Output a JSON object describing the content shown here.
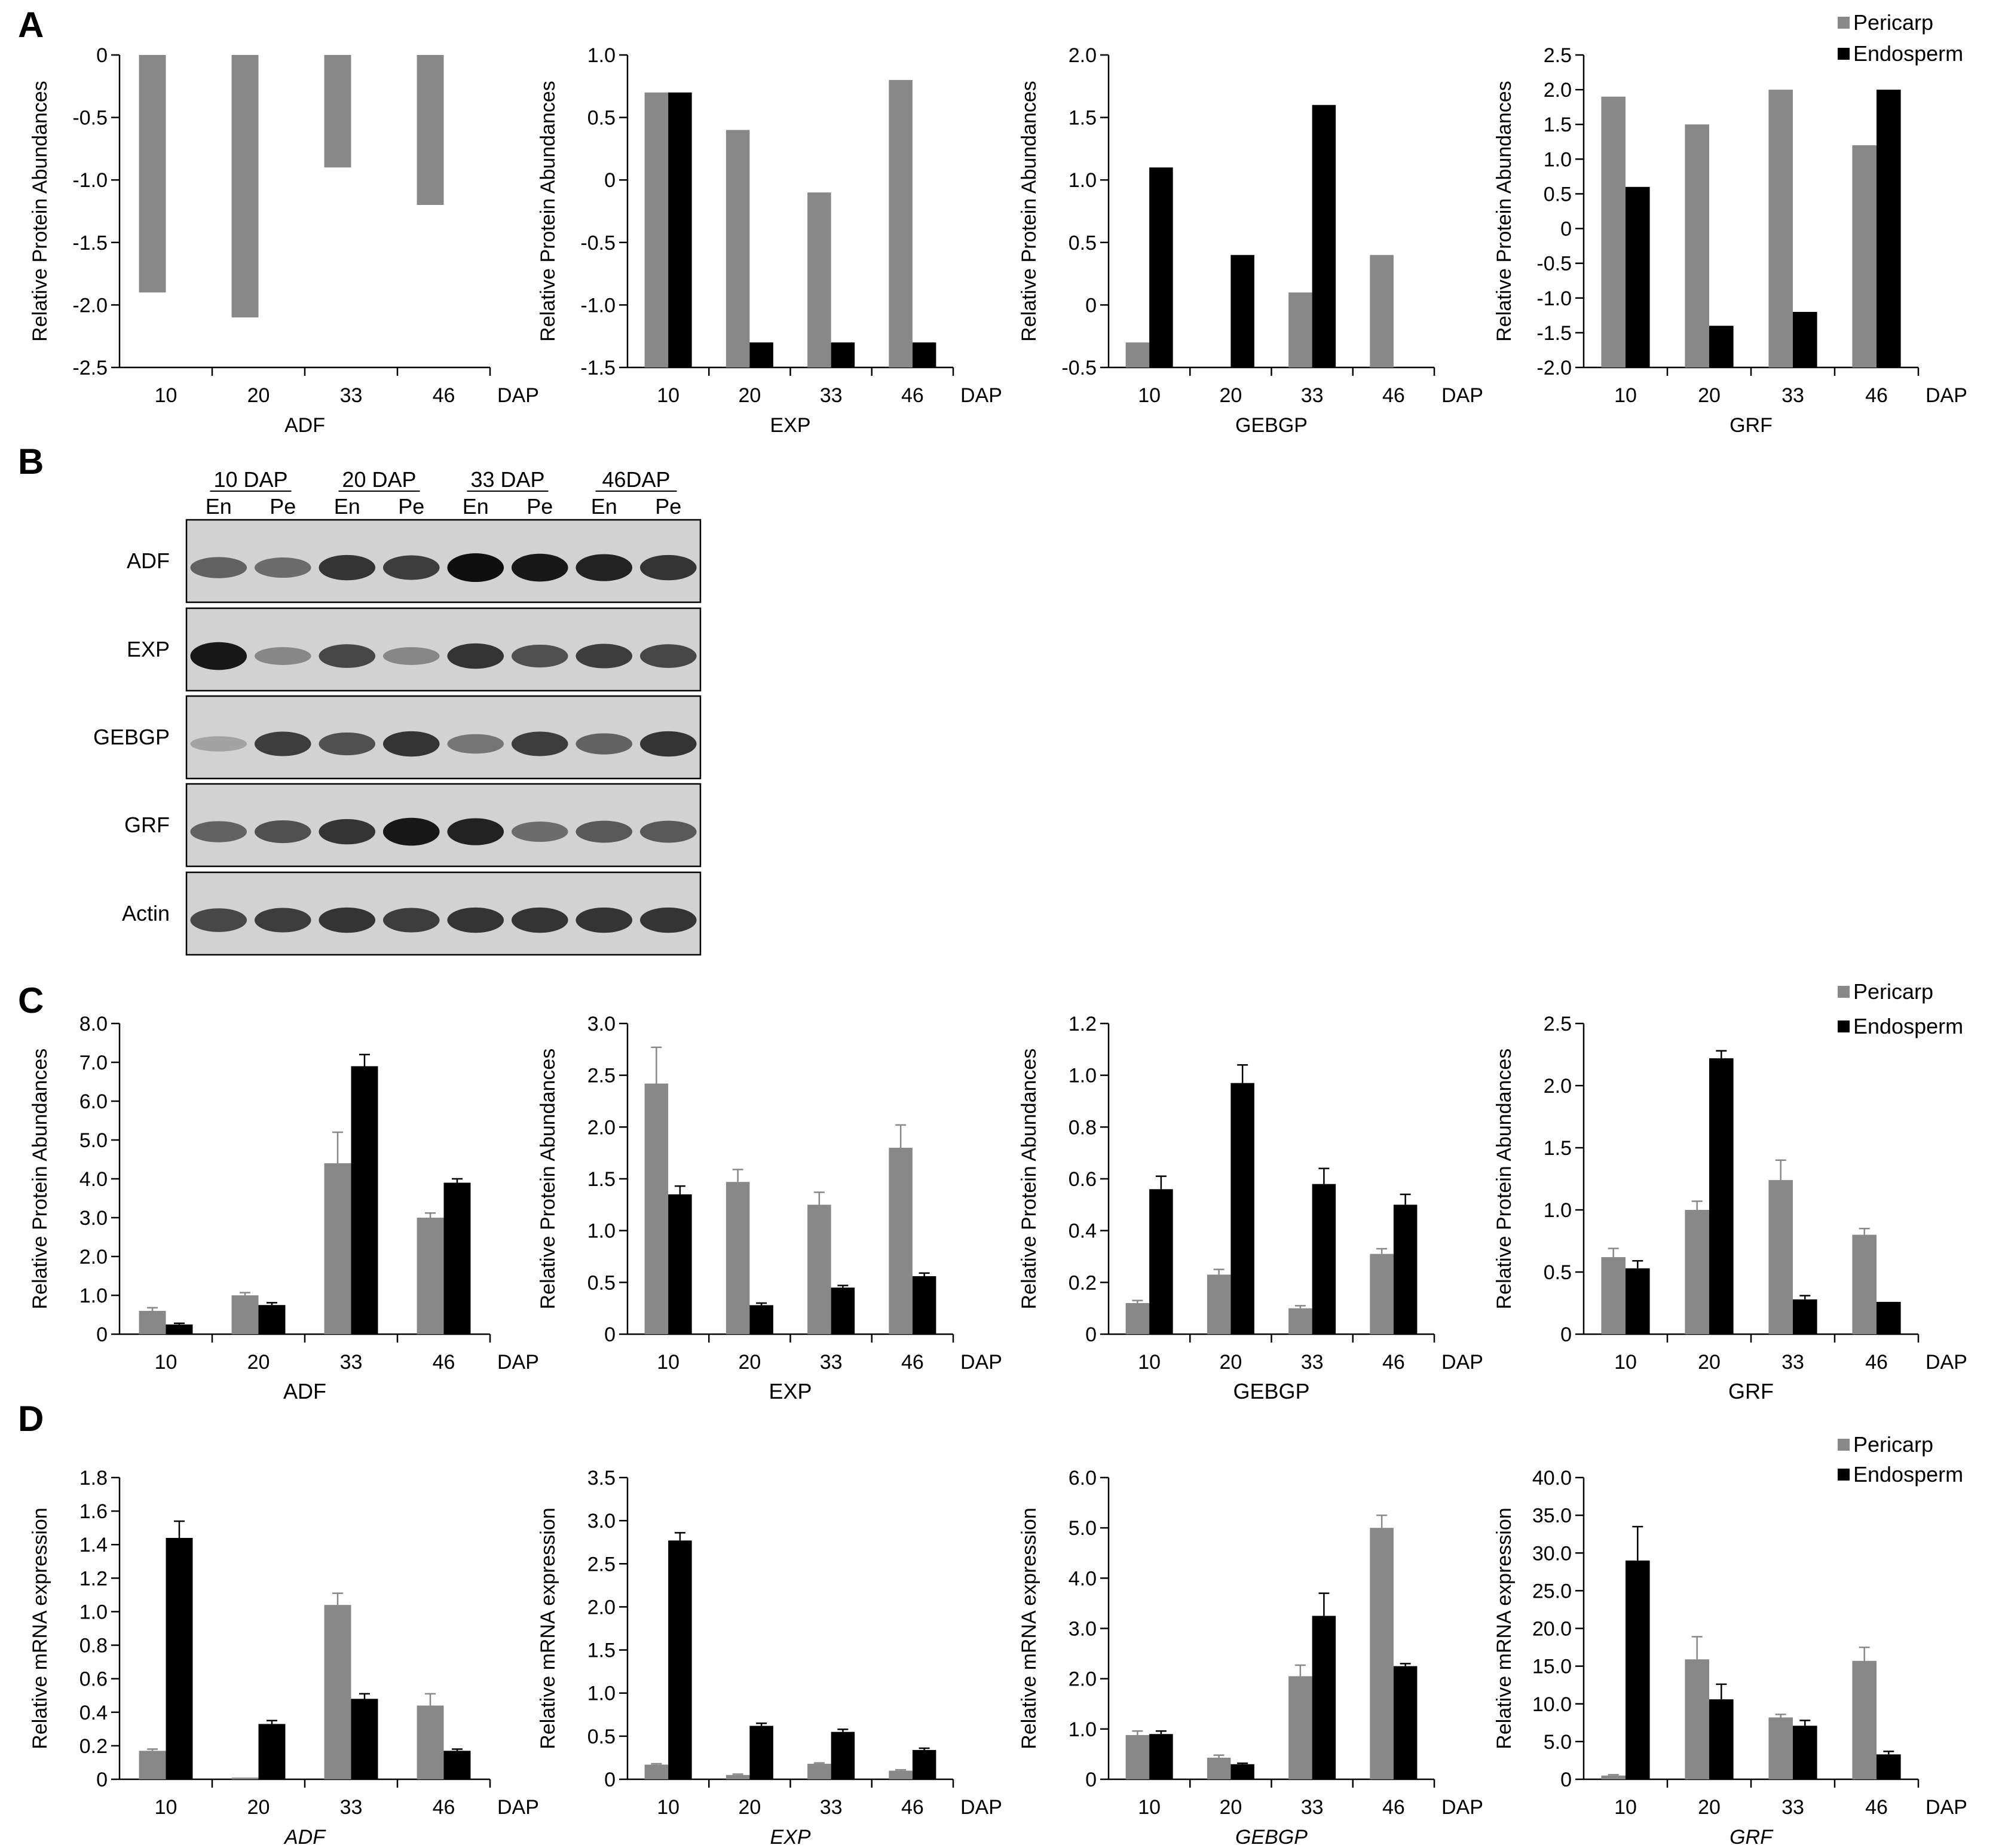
{
  "panels": [
    {
      "id": "A",
      "letter": "A"
    },
    {
      "id": "B",
      "letter": "B"
    },
    {
      "id": "C",
      "letter": "C"
    },
    {
      "id": "D",
      "letter": "D"
    }
  ],
  "legend": {
    "pericarp": "Pericarp",
    "endosperm": "Endosperm",
    "pericarp_color": "#888888",
    "endosperm_color": "#000000"
  },
  "blot": {
    "groups": [
      "10 DAP",
      "20 DAP",
      "33 DAP",
      "46DAP"
    ],
    "lanes": [
      "En",
      "Pe",
      "En",
      "Pe",
      "En",
      "Pe",
      "En",
      "Pe"
    ],
    "rows": [
      {
        "label": "ADF",
        "intensity": [
          0.55,
          0.5,
          0.8,
          0.75,
          1.0,
          0.95,
          0.9,
          0.8
        ]
      },
      {
        "label": "EXP",
        "intensity": [
          0.95,
          0.35,
          0.7,
          0.35,
          0.8,
          0.65,
          0.75,
          0.7
        ]
      },
      {
        "label": "GEBGP",
        "intensity": [
          0.2,
          0.75,
          0.65,
          0.8,
          0.45,
          0.75,
          0.55,
          0.8
        ]
      },
      {
        "label": "GRF",
        "intensity": [
          0.55,
          0.65,
          0.8,
          0.95,
          0.9,
          0.5,
          0.6,
          0.6
        ]
      },
      {
        "label": "Actin",
        "intensity": [
          0.7,
          0.75,
          0.8,
          0.75,
          0.8,
          0.8,
          0.8,
          0.8
        ]
      }
    ]
  },
  "chart_data": [
    {
      "panel": "A",
      "type": "bar",
      "categories": [
        "10",
        "20",
        "33",
        "46"
      ],
      "xunit": "DAP",
      "xlabel": "ADF",
      "xlabel_italic": false,
      "ylabel": "Relative Protein Abundances",
      "ylim": [
        -2.5,
        0
      ],
      "yticks": [
        "0",
        "-0.5",
        "-1.0",
        "-1.5",
        "-2.0",
        "-2.5"
      ],
      "baseline": 0,
      "series": [
        {
          "name": "Pericarp",
          "values": [
            -1.9,
            -2.1,
            -0.9,
            -1.2
          ]
        },
        {
          "name": "Endosperm",
          "values": [
            null,
            null,
            null,
            null
          ]
        }
      ]
    },
    {
      "panel": "A",
      "type": "bar",
      "categories": [
        "10",
        "20",
        "33",
        "46"
      ],
      "xunit": "DAP",
      "xlabel": "EXP",
      "xlabel_italic": false,
      "ylabel": "Relative Protein Abundances",
      "ylim": [
        -1.5,
        1.0
      ],
      "yticks": [
        "1.0",
        "0.5",
        "0",
        "-0.5",
        "-1.0",
        "-1.5"
      ],
      "baseline": -1.5,
      "series": [
        {
          "name": "Pericarp",
          "values": [
            0.7,
            0.4,
            -0.1,
            0.8
          ]
        },
        {
          "name": "Endosperm",
          "values": [
            0.7,
            -1.3,
            -1.3,
            -1.3
          ]
        }
      ]
    },
    {
      "panel": "A",
      "type": "bar",
      "categories": [
        "10",
        "20",
        "33",
        "46"
      ],
      "xunit": "DAP",
      "xlabel": "GEBGP",
      "xlabel_italic": false,
      "ylabel": "Relative Protein Abundances",
      "ylim": [
        -0.5,
        2.0
      ],
      "yticks": [
        "2.0",
        "1.5",
        "1.0",
        "0.5",
        "0",
        "-0.5"
      ],
      "baseline": -0.5,
      "series": [
        {
          "name": "Pericarp",
          "values": [
            -0.3,
            null,
            0.1,
            0.4
          ]
        },
        {
          "name": "Endosperm",
          "values": [
            1.1,
            0.4,
            1.6,
            null
          ]
        }
      ]
    },
    {
      "panel": "A",
      "type": "bar",
      "categories": [
        "10",
        "20",
        "33",
        "46"
      ],
      "xunit": "DAP",
      "xlabel": "GRF",
      "xlabel_italic": false,
      "ylabel": "Relative Protein Abundances",
      "ylim": [
        -2.0,
        2.5
      ],
      "yticks": [
        "2.5",
        "2.0",
        "1.5",
        "1.0",
        "0.5",
        "0",
        "-0.5",
        "-1.0",
        "-1.5",
        "-2.0"
      ],
      "baseline": -2.0,
      "legend": true,
      "series": [
        {
          "name": "Pericarp",
          "values": [
            1.9,
            1.5,
            2.0,
            1.2
          ]
        },
        {
          "name": "Endosperm",
          "values": [
            0.6,
            -1.4,
            -1.2,
            2.0
          ]
        }
      ]
    },
    {
      "panel": "C",
      "type": "bar",
      "categories": [
        "10",
        "20",
        "33",
        "46"
      ],
      "xunit": "DAP",
      "xlabel": "ADF",
      "xlabel_italic": false,
      "ylabel": "Relative Protein Abundances",
      "ylim": [
        0,
        8.0
      ],
      "yticks": [
        "0",
        "1.0",
        "2.0",
        "3.0",
        "4.0",
        "5.0",
        "6.0",
        "7.0",
        "8.0"
      ],
      "baseline": 0,
      "series": [
        {
          "name": "Pericarp",
          "values": [
            0.6,
            1.0,
            4.4,
            3.0
          ],
          "errors": [
            0.08,
            0.07,
            0.8,
            0.12
          ]
        },
        {
          "name": "Endosperm",
          "values": [
            0.25,
            0.75,
            6.9,
            3.9
          ],
          "errors": [
            0.03,
            0.06,
            0.3,
            0.1
          ]
        }
      ]
    },
    {
      "panel": "C",
      "type": "bar",
      "categories": [
        "10",
        "20",
        "33",
        "46"
      ],
      "xunit": "DAP",
      "xlabel": "EXP",
      "xlabel_italic": false,
      "ylabel": "Relative Protein Abundances",
      "ylim": [
        0,
        3.0
      ],
      "yticks": [
        "0",
        "0.5",
        "1.0",
        "1.5",
        "2.0",
        "2.5",
        "3.0"
      ],
      "baseline": 0,
      "series": [
        {
          "name": "Pericarp",
          "values": [
            2.42,
            1.47,
            1.25,
            1.8
          ],
          "errors": [
            0.35,
            0.12,
            0.12,
            0.22
          ]
        },
        {
          "name": "Endosperm",
          "values": [
            1.35,
            0.28,
            0.45,
            0.56
          ],
          "errors": [
            0.08,
            0.02,
            0.02,
            0.03
          ]
        }
      ]
    },
    {
      "panel": "C",
      "type": "bar",
      "categories": [
        "10",
        "20",
        "33",
        "46"
      ],
      "xunit": "DAP",
      "xlabel": "GEBGP",
      "xlabel_italic": false,
      "ylabel": "Relative Protein Abundances",
      "ylim": [
        0,
        1.2
      ],
      "yticks": [
        "0",
        "0.2",
        "0.4",
        "0.6",
        "0.8",
        "1.0",
        "1.2"
      ],
      "baseline": 0,
      "series": [
        {
          "name": "Pericarp",
          "values": [
            0.12,
            0.23,
            0.1,
            0.31
          ],
          "errors": [
            0.01,
            0.02,
            0.01,
            0.02
          ]
        },
        {
          "name": "Endosperm",
          "values": [
            0.56,
            0.97,
            0.58,
            0.5
          ],
          "errors": [
            0.05,
            0.07,
            0.06,
            0.04
          ]
        }
      ]
    },
    {
      "panel": "C",
      "type": "bar",
      "categories": [
        "10",
        "20",
        "33",
        "46"
      ],
      "xunit": "DAP",
      "xlabel": "GRF",
      "xlabel_italic": false,
      "ylabel": "Relative Protein Abundances",
      "ylim": [
        0,
        2.5
      ],
      "yticks": [
        "0",
        "0.5",
        "1.0",
        "1.5",
        "2.0",
        "2.5"
      ],
      "baseline": 0,
      "legend": true,
      "series": [
        {
          "name": "Pericarp",
          "values": [
            0.62,
            1.0,
            1.24,
            0.8
          ],
          "errors": [
            0.07,
            0.07,
            0.16,
            0.05
          ]
        },
        {
          "name": "Endosperm",
          "values": [
            0.53,
            2.22,
            0.28,
            0.26
          ],
          "errors": [
            0.06,
            0.06,
            0.03,
            0.0
          ]
        }
      ]
    },
    {
      "panel": "D",
      "type": "bar",
      "categories": [
        "10",
        "20",
        "33",
        "46"
      ],
      "xunit": "DAP",
      "xlabel": "ADF",
      "xlabel_italic": true,
      "ylabel": "Relative mRNA expression",
      "ylim": [
        0,
        1.8
      ],
      "yticks": [
        "0",
        "0.2",
        "0.4",
        "0.6",
        "0.8",
        "1.0",
        "1.2",
        "1.4",
        "1.6",
        "1.8"
      ],
      "baseline": 0,
      "series": [
        {
          "name": "Pericarp",
          "values": [
            0.17,
            0.01,
            1.04,
            0.44
          ],
          "errors": [
            0.01,
            0.0,
            0.07,
            0.07
          ]
        },
        {
          "name": "Endosperm",
          "values": [
            1.44,
            0.33,
            0.48,
            0.17
          ],
          "errors": [
            0.1,
            0.02,
            0.03,
            0.01
          ]
        }
      ]
    },
    {
      "panel": "D",
      "type": "bar",
      "categories": [
        "10",
        "20",
        "33",
        "46"
      ],
      "xunit": "DAP",
      "xlabel": "EXP",
      "xlabel_italic": true,
      "ylabel": "Relative mRNA expression",
      "ylim": [
        0,
        3.5
      ],
      "yticks": [
        "0",
        "0.5",
        "1.0",
        "1.5",
        "2.0",
        "2.5",
        "3.0",
        "3.5"
      ],
      "baseline": 0,
      "series": [
        {
          "name": "Pericarp",
          "values": [
            0.17,
            0.05,
            0.18,
            0.1
          ],
          "errors": [
            0.01,
            0.01,
            0.01,
            0.01
          ]
        },
        {
          "name": "Endosperm",
          "values": [
            2.77,
            0.62,
            0.55,
            0.34
          ],
          "errors": [
            0.09,
            0.03,
            0.03,
            0.02
          ]
        }
      ]
    },
    {
      "panel": "D",
      "type": "bar",
      "categories": [
        "10",
        "20",
        "33",
        "46"
      ],
      "xunit": "DAP",
      "xlabel": "GEBGP",
      "xlabel_italic": true,
      "ylabel": "Relative mRNA expression",
      "ylim": [
        0,
        6.0
      ],
      "yticks": [
        "0",
        "1.0",
        "2.0",
        "3.0",
        "4.0",
        "5.0",
        "6.0"
      ],
      "baseline": 0,
      "series": [
        {
          "name": "Pericarp",
          "values": [
            0.88,
            0.43,
            2.05,
            5.0
          ],
          "errors": [
            0.08,
            0.05,
            0.22,
            0.25
          ]
        },
        {
          "name": "Endosperm",
          "values": [
            0.9,
            0.3,
            3.25,
            2.25
          ],
          "errors": [
            0.06,
            0.02,
            0.45,
            0.05
          ]
        }
      ]
    },
    {
      "panel": "D",
      "type": "bar",
      "categories": [
        "10",
        "20",
        "33",
        "46"
      ],
      "xunit": "DAP",
      "xlabel": "GRF",
      "xlabel_italic": true,
      "ylabel": "Relative mRNA expression",
      "ylim": [
        0,
        40.0
      ],
      "yticks": [
        "0",
        "5.0",
        "10.0",
        "15.0",
        "20.0",
        "25.0",
        "30.0",
        "35.0",
        "40.0"
      ],
      "baseline": 0,
      "legend": true,
      "series": [
        {
          "name": "Pericarp",
          "values": [
            0.5,
            15.9,
            8.2,
            15.7
          ],
          "errors": [
            0.1,
            3.0,
            0.4,
            1.8
          ]
        },
        {
          "name": "Endosperm",
          "values": [
            29.0,
            10.6,
            7.1,
            3.3
          ],
          "errors": [
            4.5,
            2.0,
            0.7,
            0.4
          ]
        }
      ]
    }
  ]
}
